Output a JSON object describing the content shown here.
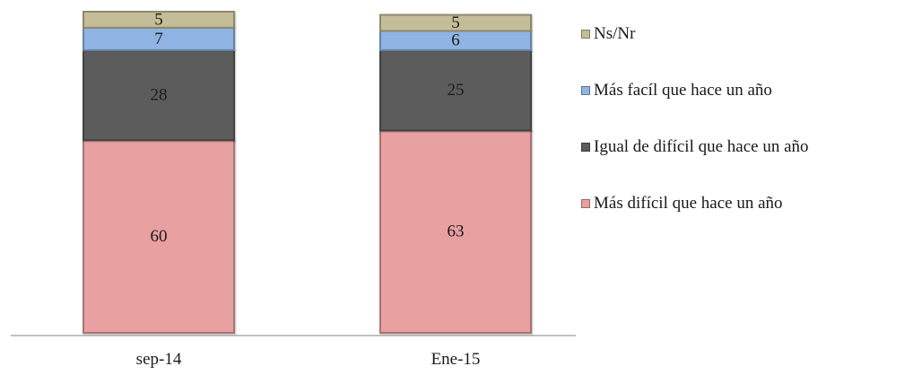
{
  "chart_data": {
    "type": "bar",
    "stacked": true,
    "categories": [
      "sep-14",
      "Ene-15"
    ],
    "series": [
      {
        "name": "Más difícil que hace un año",
        "values": [
          60,
          63
        ],
        "color": "#e8a0a0"
      },
      {
        "name": "Igual de difícil que hace un año",
        "values": [
          28,
          25
        ],
        "color": "#5c5c5c"
      },
      {
        "name": "Más facíl que hace un año",
        "values": [
          7,
          6
        ],
        "color": "#8fb4e3"
      },
      {
        "name": "Ns/Nr",
        "values": [
          5,
          5
        ],
        "color": "#c4bd97"
      }
    ],
    "legend_order": [
      "Ns/Nr",
      "Más facíl que hace un año",
      "Igual de difícil que hace un año",
      "Más difícil que hace un año"
    ],
    "legend_position": "right",
    "ylim": [
      0,
      100
    ],
    "grid": false,
    "data_labels": true
  }
}
